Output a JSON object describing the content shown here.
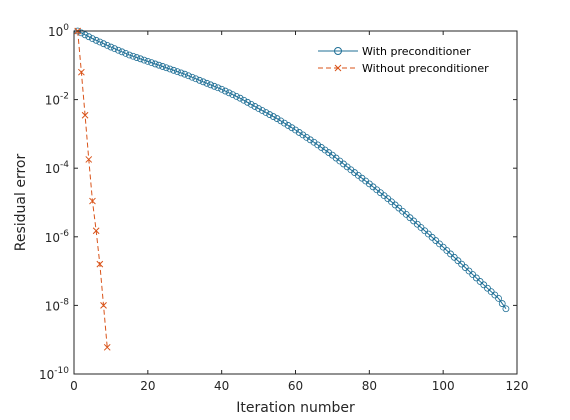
{
  "chart_data": {
    "type": "line",
    "xlabel": "Iteration number",
    "ylabel": "Residual error",
    "xlim": [
      0,
      120
    ],
    "ylim": [
      1e-10,
      1
    ],
    "yscale": "log",
    "grid": false,
    "legend_position": "top-right",
    "x_ticks": [
      {
        "value": 0,
        "label": "0"
      },
      {
        "value": 20,
        "label": "20"
      },
      {
        "value": 40,
        "label": "40"
      },
      {
        "value": 60,
        "label": "60"
      },
      {
        "value": 80,
        "label": "80"
      },
      {
        "value": 100,
        "label": "100"
      },
      {
        "value": 120,
        "label": "120"
      }
    ],
    "y_ticks": [
      {
        "value": 1,
        "base": "10",
        "exp": "0"
      },
      {
        "value": 0.01,
        "base": "10",
        "exp": "-2"
      },
      {
        "value": 0.0001,
        "base": "10",
        "exp": "-4"
      },
      {
        "value": 1e-06,
        "base": "10",
        "exp": "-6"
      },
      {
        "value": 1e-08,
        "base": "10",
        "exp": "-8"
      },
      {
        "value": 1e-10,
        "base": "10",
        "exp": "-10"
      }
    ],
    "series": [
      {
        "name": "With preconditioner",
        "marker": "circle",
        "line": "solid",
        "color": "#1f6f96",
        "x": [
          1,
          5,
          10,
          15,
          20,
          25,
          30,
          35,
          40,
          45,
          50,
          55,
          60,
          65,
          70,
          75,
          80,
          85,
          90,
          95,
          100,
          105,
          110,
          115,
          117
        ],
        "y": [
          1,
          0.6,
          0.34,
          0.2,
          0.13,
          0.085,
          0.055,
          0.033,
          0.02,
          0.011,
          0.0055,
          0.0028,
          0.0013,
          0.00057,
          0.00024,
          9e-05,
          3.5e-05,
          1.3e-05,
          4.5e-06,
          1.5e-06,
          5e-07,
          1.6e-07,
          5e-08,
          1.6e-08,
          8e-09
        ]
      },
      {
        "name": "Without preconditioner",
        "marker": "x",
        "line": "dashed",
        "color": "#d95319",
        "x": [
          1,
          2,
          3,
          4,
          5,
          6,
          7,
          8,
          9
        ],
        "y": [
          1,
          0.063,
          0.0035,
          0.00018,
          1.1e-05,
          1.5e-06,
          1.6e-07,
          1e-08,
          6e-10
        ]
      }
    ]
  }
}
